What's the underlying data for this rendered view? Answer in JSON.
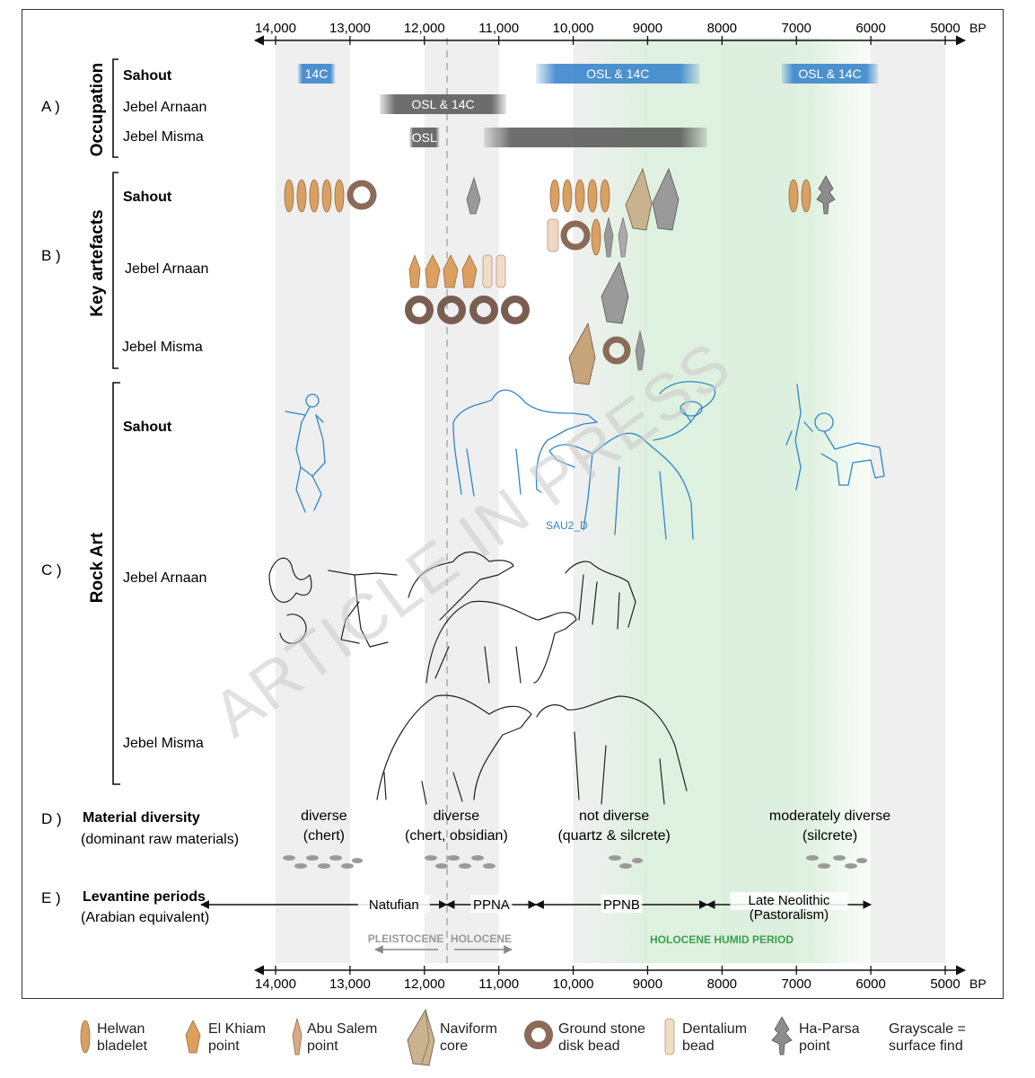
{
  "axis": {
    "unit": "BP",
    "ticks": [
      "14,000",
      "13,000",
      "12,000",
      "11,000",
      "10,000",
      "9000",
      "8000",
      "7000",
      "6000",
      "5000"
    ],
    "tick_values": [
      14000,
      13000,
      12000,
      11000,
      10000,
      9000,
      8000,
      7000,
      6000,
      5000
    ]
  },
  "sections": {
    "A": {
      "letter": "A )",
      "title": "Occupation"
    },
    "B": {
      "letter": "B )",
      "title": "Key artefacts"
    },
    "C": {
      "letter": "C )",
      "title": "Rock Art"
    },
    "D": {
      "letter": "D )",
      "title": "Material diversity",
      "subtitle": "(dominant raw materials)"
    },
    "E": {
      "letter": "E )",
      "title": "Levantine periods",
      "subtitle": "(Arabian equivalent)"
    }
  },
  "sites": {
    "sahout": "Sahout",
    "arnaan": "Jebel Arnaan",
    "misma": "Jebel Misma"
  },
  "occupation_bars": [
    {
      "site": "sahout",
      "label": "14C",
      "from": 13700,
      "to": 13200,
      "color": "#3b86cc"
    },
    {
      "site": "sahout",
      "label": "OSL & 14C",
      "from": 10500,
      "to": 8300,
      "color": "#3b86cc"
    },
    {
      "site": "sahout",
      "label": "OSL & 14C",
      "from": 7200,
      "to": 5900,
      "color": "#3b86cc"
    },
    {
      "site": "arnaan",
      "label": "OSL & 14C",
      "from": 12600,
      "to": 10900,
      "color": "#666666"
    },
    {
      "site": "misma",
      "label": "OSL",
      "from": 12200,
      "to": 11800,
      "color": "#666666"
    },
    {
      "site": "misma",
      "label": "",
      "from": 11200,
      "to": 8200,
      "color": "#777777"
    }
  ],
  "diversity": [
    {
      "line1": "diverse",
      "line2": "(chert)",
      "at": 13350
    },
    {
      "line1": "diverse",
      "line2": "(chert, obsidian)",
      "at": 11570
    },
    {
      "line1": "not diverse",
      "line2": "(quartz & silcrete)",
      "at": 9450
    },
    {
      "line1": "moderately diverse",
      "line2": "(silcrete)",
      "at": 6550
    }
  ],
  "periods": [
    {
      "name": "Natufian",
      "from": 15000,
      "to": 11700
    },
    {
      "name": "PPNA",
      "from": 11700,
      "to": 10500
    },
    {
      "name": "PPNB",
      "from": 10500,
      "to": 8200
    },
    {
      "name": "Late Neolithic",
      "name2": "(Pastoralism)",
      "from": 8200,
      "to": 6000
    }
  ],
  "epochs": {
    "pleistocene": "PLEISTOCENE",
    "holocene": "HOLOCENE",
    "humid": "HOLOCENE HUMID PERIOD"
  },
  "rock_art_label": "SAU2_D",
  "watermark": "ARTICLE IN PRESS",
  "legend": [
    {
      "line1": "Helwan",
      "line2": "bladelet",
      "icon": "helwan-bladelet-icon"
    },
    {
      "line1": "El Khiam",
      "line2": "point",
      "icon": "el-khiam-point-icon"
    },
    {
      "line1": "Abu Salem",
      "line2": "point",
      "icon": "abu-salem-point-icon"
    },
    {
      "line1": "Naviform",
      "line2": "core",
      "icon": "naviform-core-icon"
    },
    {
      "line1": "Ground stone",
      "line2": "disk bead",
      "icon": "disk-bead-icon"
    },
    {
      "line1": "Dentalium",
      "line2": "bead",
      "icon": "dentalium-bead-icon"
    },
    {
      "line1": "Ha-Parsa",
      "line2": "point",
      "icon": "ha-parsa-point-icon"
    },
    {
      "line1": "Grayscale =",
      "line2": "surface find",
      "icon": ""
    }
  ],
  "colors": {
    "blue": "#3b86cc",
    "humid": "#d7efd9",
    "band": "#efefef",
    "artefact": "#d9a064",
    "line": "#2e86c8"
  }
}
